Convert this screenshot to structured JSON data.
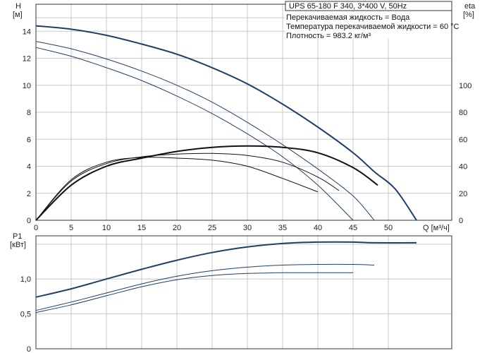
{
  "header": {
    "title": "UPS 65-180 F 340, 3*400 V, 50Hz",
    "info_lines": [
      "Перекачиваемая жидкость = Вода",
      "Температура перекачиваемой жидкости = 60 °C",
      "Плотность = 983.2 кг/м³"
    ]
  },
  "colors": {
    "frame": "#333333",
    "grid": "#c9c9c9",
    "head_curve": "#1f3f6a",
    "eff_curve": "#111111",
    "power_curve": "#1f3f6a"
  },
  "chart_data": [
    {
      "type": "line",
      "title": "",
      "xlabel": "Q [м³/ч]",
      "ylabel": "H\n[м]",
      "y2label": "eta\n[%]",
      "xlim": [
        0,
        59
      ],
      "ylim": [
        0,
        16
      ],
      "y2lim": [
        0,
        160
      ],
      "xticks": [
        0,
        5,
        10,
        15,
        20,
        25,
        30,
        35,
        40,
        45,
        50
      ],
      "yticks": [
        0,
        2,
        4,
        6,
        8,
        10,
        12,
        14
      ],
      "y2ticks": [
        0,
        20,
        40,
        60,
        80,
        100
      ],
      "grid": true,
      "series": [
        {
          "axis": "left",
          "width": 2.0,
          "x": [
            0,
            5,
            10,
            15,
            20,
            25,
            30,
            35,
            40,
            45,
            48,
            51,
            54
          ],
          "y": [
            14.4,
            14.15,
            13.7,
            13.05,
            12.3,
            11.3,
            10.1,
            8.6,
            6.9,
            5.0,
            3.6,
            2.3,
            0.0
          ]
        },
        {
          "axis": "left",
          "width": 1.0,
          "x": [
            0,
            5,
            10,
            15,
            20,
            25,
            30,
            35,
            40,
            45,
            48
          ],
          "y": [
            13.25,
            12.7,
            11.95,
            11.05,
            10.0,
            8.75,
            7.25,
            5.6,
            3.8,
            1.8,
            0.0
          ]
        },
        {
          "axis": "left",
          "width": 1.0,
          "x": [
            0,
            5,
            10,
            15,
            20,
            25,
            30,
            35,
            40,
            45
          ],
          "y": [
            12.8,
            12.15,
            11.3,
            10.35,
            9.2,
            7.9,
            6.4,
            4.7,
            2.6,
            0.0
          ]
        },
        {
          "axis": "right",
          "width": 2.0,
          "x": [
            0,
            5,
            10,
            15,
            20,
            25,
            30,
            35,
            40,
            45,
            48.5
          ],
          "y": [
            0,
            26,
            40,
            46,
            51,
            54,
            55,
            54,
            50,
            39,
            26
          ]
        },
        {
          "axis": "right",
          "width": 1.0,
          "x": [
            0,
            5,
            10,
            15,
            20,
            25,
            30,
            35,
            40,
            43
          ],
          "y": [
            0,
            29,
            42,
            47,
            49,
            49.5,
            48,
            43,
            32,
            22
          ]
        },
        {
          "axis": "right",
          "width": 1.0,
          "x": [
            0,
            5,
            10,
            15,
            20,
            25,
            30,
            35,
            40
          ],
          "y": [
            0,
            30,
            43,
            46.5,
            46,
            44.5,
            40,
            31,
            21
          ]
        }
      ]
    },
    {
      "type": "line",
      "title": "",
      "xlabel": "",
      "ylabel": "P1\n[кВт]",
      "xlim": [
        0,
        59
      ],
      "ylim": [
        0,
        1.62
      ],
      "yticks": [
        0,
        0.5,
        1.0
      ],
      "ytick_labels": [
        "0",
        "0,5",
        "1,0"
      ],
      "grid": true,
      "series": [
        {
          "width": 2.0,
          "x": [
            0,
            5,
            10,
            15,
            20,
            25,
            30,
            35,
            40,
            45,
            48,
            54
          ],
          "y": [
            0.74,
            0.86,
            1.0,
            1.14,
            1.27,
            1.38,
            1.46,
            1.51,
            1.53,
            1.53,
            1.52,
            1.52
          ]
        },
        {
          "width": 1.0,
          "x": [
            0,
            5,
            10,
            15,
            20,
            25,
            30,
            35,
            40,
            45,
            48
          ],
          "y": [
            0.55,
            0.67,
            0.8,
            0.93,
            1.04,
            1.12,
            1.17,
            1.2,
            1.21,
            1.21,
            1.2
          ]
        },
        {
          "width": 1.0,
          "x": [
            0,
            5,
            10,
            15,
            20,
            25,
            30,
            35,
            40,
            45
          ],
          "y": [
            0.52,
            0.63,
            0.76,
            0.89,
            0.99,
            1.05,
            1.08,
            1.09,
            1.09,
            1.09
          ]
        }
      ]
    }
  ]
}
